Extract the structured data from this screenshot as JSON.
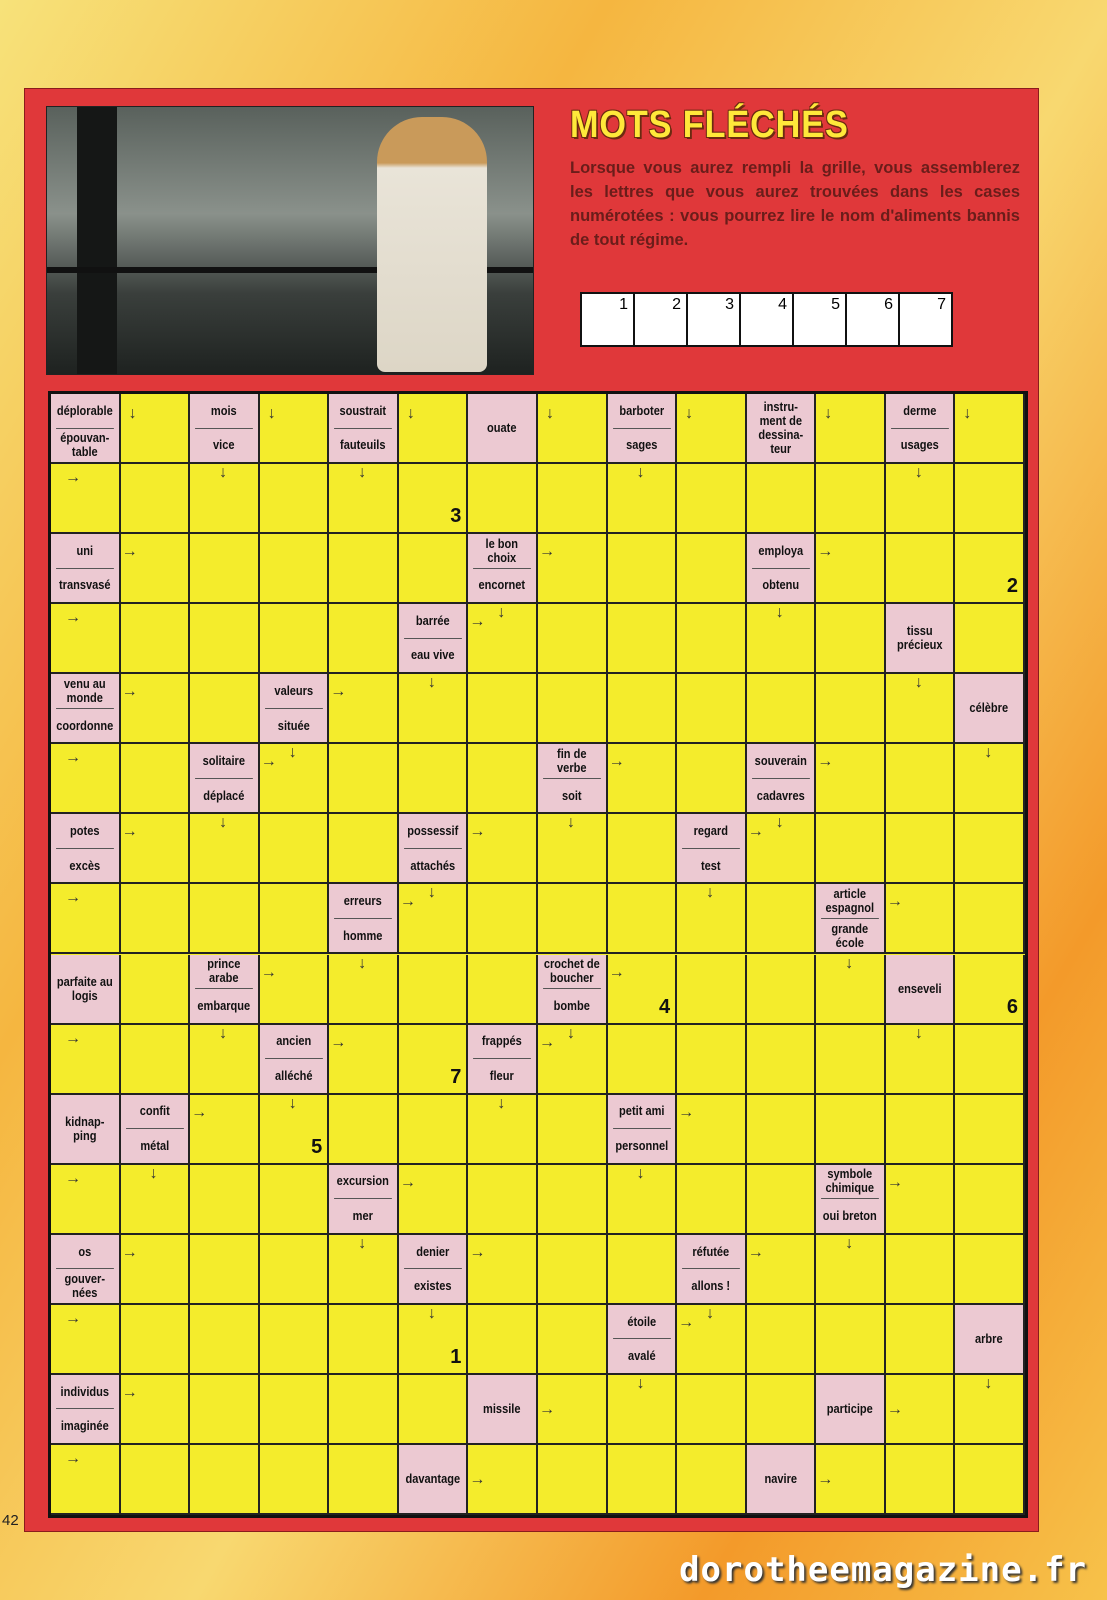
{
  "title": "MOTS FLÉCHÉS",
  "intro": "Lorsque vous aurez rempli la grille, vous assemblerez les lettres que vous aurez trouvées dans les cases numérotées : vous pourrez lire le nom d'aliments bannis de tout régime.",
  "answer_boxes": [
    "1",
    "2",
    "3",
    "4",
    "5",
    "6",
    "7"
  ],
  "grid_size": {
    "rows": 16,
    "cols": 14
  },
  "colors": {
    "panel": "#e0383a",
    "cell": "#f4ec2c",
    "clue": "#ecc9d2",
    "title": "#ffe83a"
  },
  "clues": [
    {
      "r": 0,
      "c": 0,
      "q": [
        {
          "t": "déplorable",
          "d": "right-down"
        },
        {
          "t": "épouvan-table",
          "d": "down-right"
        }
      ]
    },
    {
      "r": 0,
      "c": 2,
      "q": [
        {
          "t": "mois",
          "d": "right-down"
        },
        {
          "t": "vice",
          "d": "down"
        }
      ]
    },
    {
      "r": 0,
      "c": 4,
      "q": [
        {
          "t": "soustrait",
          "d": "right-down"
        },
        {
          "t": "fauteuils",
          "d": "down"
        }
      ]
    },
    {
      "r": 0,
      "c": 6,
      "q": [
        {
          "t": "ouate",
          "d": "right-down"
        }
      ]
    },
    {
      "r": 0,
      "c": 8,
      "q": [
        {
          "t": "barboter",
          "d": "right-down"
        },
        {
          "t": "sages",
          "d": "down"
        }
      ]
    },
    {
      "r": 0,
      "c": 10,
      "q": [
        {
          "t": "instru-ment de dessina-teur",
          "d": "right-down"
        }
      ]
    },
    {
      "r": 0,
      "c": 12,
      "q": [
        {
          "t": "derme",
          "d": "right-down"
        },
        {
          "t": "usages",
          "d": "down"
        }
      ]
    },
    {
      "r": 2,
      "c": 0,
      "q": [
        {
          "t": "uni",
          "d": "right"
        },
        {
          "t": "transvasé",
          "d": "down-right"
        }
      ]
    },
    {
      "r": 2,
      "c": 6,
      "q": [
        {
          "t": "le bon choix",
          "d": "right"
        },
        {
          "t": "encornet",
          "d": "down"
        }
      ]
    },
    {
      "r": 2,
      "c": 10,
      "q": [
        {
          "t": "employa",
          "d": "right"
        },
        {
          "t": "obtenu",
          "d": "down"
        }
      ]
    },
    {
      "r": 3,
      "c": 5,
      "q": [
        {
          "t": "barrée",
          "d": "right"
        },
        {
          "t": "eau vive",
          "d": "down"
        }
      ]
    },
    {
      "r": 3,
      "c": 12,
      "q": [
        {
          "t": "tissu précieux",
          "d": "down"
        }
      ]
    },
    {
      "r": 4,
      "c": 0,
      "q": [
        {
          "t": "venu au monde",
          "d": "right"
        },
        {
          "t": "coordonne",
          "d": "down-right"
        }
      ]
    },
    {
      "r": 4,
      "c": 3,
      "q": [
        {
          "t": "valeurs",
          "d": "right"
        },
        {
          "t": "située",
          "d": "down"
        }
      ]
    },
    {
      "r": 4,
      "c": 13,
      "q": [
        {
          "t": "célèbre",
          "d": "down"
        }
      ]
    },
    {
      "r": 5,
      "c": 2,
      "q": [
        {
          "t": "solitaire",
          "d": "right"
        },
        {
          "t": "déplacé",
          "d": "down"
        }
      ]
    },
    {
      "r": 5,
      "c": 7,
      "q": [
        {
          "t": "fin de verbe",
          "d": "right"
        },
        {
          "t": "soit",
          "d": "down"
        }
      ]
    },
    {
      "r": 5,
      "c": 10,
      "q": [
        {
          "t": "souverain",
          "d": "right"
        },
        {
          "t": "cadavres",
          "d": "down"
        }
      ]
    },
    {
      "r": 6,
      "c": 0,
      "q": [
        {
          "t": "potes",
          "d": "right"
        },
        {
          "t": "excès",
          "d": "down-right"
        }
      ]
    },
    {
      "r": 6,
      "c": 5,
      "q": [
        {
          "t": "possessif",
          "d": "right"
        },
        {
          "t": "attachés",
          "d": "down"
        }
      ]
    },
    {
      "r": 6,
      "c": 9,
      "q": [
        {
          "t": "regard",
          "d": "right"
        },
        {
          "t": "test",
          "d": "down"
        }
      ]
    },
    {
      "r": 7,
      "c": 4,
      "q": [
        {
          "t": "erreurs",
          "d": "right"
        },
        {
          "t": "homme",
          "d": "down"
        }
      ]
    },
    {
      "r": 7,
      "c": 11,
      "q": [
        {
          "t": "article espagnol",
          "d": "right"
        },
        {
          "t": "grande école",
          "d": "down"
        }
      ]
    },
    {
      "r": 8,
      "c": 0,
      "q": [
        {
          "t": "parfaite au logis",
          "d": "down-right"
        }
      ]
    },
    {
      "r": 8,
      "c": 2,
      "q": [
        {
          "t": "prince arabe",
          "d": "right"
        },
        {
          "t": "embarque",
          "d": "down"
        }
      ]
    },
    {
      "r": 8,
      "c": 7,
      "q": [
        {
          "t": "crochet de boucher",
          "d": "right"
        },
        {
          "t": "bombe",
          "d": "down"
        }
      ]
    },
    {
      "r": 8,
      "c": 12,
      "q": [
        {
          "t": "enseveli",
          "d": "down"
        }
      ]
    },
    {
      "r": 9,
      "c": 3,
      "q": [
        {
          "t": "ancien",
          "d": "right"
        },
        {
          "t": "alléché",
          "d": "down"
        }
      ]
    },
    {
      "r": 9,
      "c": 6,
      "q": [
        {
          "t": "frappés",
          "d": "right"
        },
        {
          "t": "fleur",
          "d": "down"
        }
      ]
    },
    {
      "r": 10,
      "c": 0,
      "q": [
        {
          "t": "kidnap-ping",
          "d": "down-right"
        }
      ]
    },
    {
      "r": 10,
      "c": 1,
      "q": [
        {
          "t": "confit",
          "d": "right"
        },
        {
          "t": "métal",
          "d": "down"
        }
      ]
    },
    {
      "r": 10,
      "c": 8,
      "q": [
        {
          "t": "petit ami",
          "d": "right"
        },
        {
          "t": "personnel",
          "d": "down"
        }
      ]
    },
    {
      "r": 11,
      "c": 4,
      "q": [
        {
          "t": "excursion",
          "d": "right"
        },
        {
          "t": "mer",
          "d": "down"
        }
      ]
    },
    {
      "r": 11,
      "c": 11,
      "q": [
        {
          "t": "symbole chimique",
          "d": "right"
        },
        {
          "t": "oui breton",
          "d": "down"
        }
      ]
    },
    {
      "r": 12,
      "c": 0,
      "q": [
        {
          "t": "os",
          "d": "right"
        },
        {
          "t": "gouver-nées",
          "d": "down-right"
        }
      ]
    },
    {
      "r": 12,
      "c": 5,
      "q": [
        {
          "t": "denier",
          "d": "right"
        },
        {
          "t": "existes",
          "d": "down"
        }
      ]
    },
    {
      "r": 12,
      "c": 9,
      "q": [
        {
          "t": "réfutée",
          "d": "right"
        },
        {
          "t": "allons !",
          "d": "down"
        }
      ]
    },
    {
      "r": 13,
      "c": 8,
      "q": [
        {
          "t": "étoile",
          "d": "right"
        },
        {
          "t": "avalé",
          "d": "down"
        }
      ]
    },
    {
      "r": 13,
      "c": 13,
      "q": [
        {
          "t": "arbre",
          "d": "down"
        }
      ]
    },
    {
      "r": 14,
      "c": 0,
      "q": [
        {
          "t": "individus",
          "d": "right"
        },
        {
          "t": "imaginée",
          "d": "down-right"
        }
      ]
    },
    {
      "r": 14,
      "c": 6,
      "q": [
        {
          "t": "missile",
          "d": "right"
        }
      ]
    },
    {
      "r": 14,
      "c": 11,
      "q": [
        {
          "t": "participe",
          "d": "right"
        }
      ]
    },
    {
      "r": 15,
      "c": 5,
      "q": [
        {
          "t": "davantage",
          "d": "right"
        }
      ]
    },
    {
      "r": 15,
      "c": 10,
      "q": [
        {
          "t": "navire",
          "d": "right"
        }
      ]
    }
  ],
  "numbered_cells": [
    {
      "r": 1,
      "c": 5,
      "n": "3"
    },
    {
      "r": 2,
      "c": 13,
      "n": "2"
    },
    {
      "r": 8,
      "c": 8,
      "n": "4"
    },
    {
      "r": 8,
      "c": 13,
      "n": "6"
    },
    {
      "r": 9,
      "c": 5,
      "n": "7"
    },
    {
      "r": 10,
      "c": 3,
      "n": "5"
    },
    {
      "r": 13,
      "c": 5,
      "n": "1"
    }
  ],
  "page_number": "42",
  "watermark": "dorotheemagazine.fr"
}
